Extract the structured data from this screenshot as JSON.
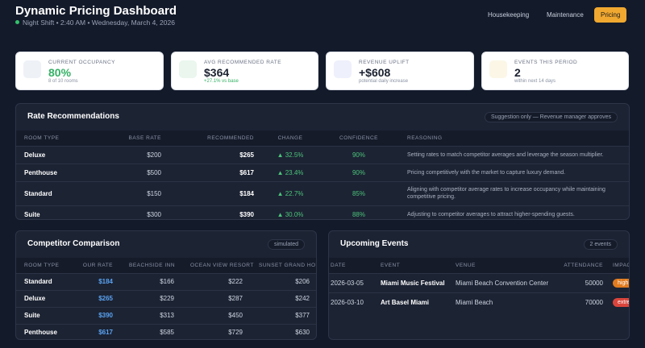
{
  "header": {
    "title": "Dynamic Pricing Dashboard",
    "subtitle": "Night Shift • 2:40 AM • Wednesday, March 4, 2026",
    "nav": [
      "Housekeeping",
      "Maintenance",
      "Pricing"
    ]
  },
  "kpis": [
    {
      "label": "CURRENT OCCUPANCY",
      "value": "80%",
      "sub": "8 of 10 rooms"
    },
    {
      "label": "AVG RECOMMENDED RATE",
      "value": "$364",
      "sub": "+27.1% vs base"
    },
    {
      "label": "REVENUE UPLIFT",
      "value": "+$608",
      "sub": "potential daily increase"
    },
    {
      "label": "EVENTS THIS PERIOD",
      "value": "2",
      "sub": "within next 14 days"
    }
  ],
  "rates": {
    "title": "Rate Recommendations",
    "badge": "Suggestion only — Revenue manager approves",
    "columns": [
      "ROOM TYPE",
      "BASE RATE",
      "RECOMMENDED",
      "CHANGE",
      "CONFIDENCE",
      "REASONING"
    ],
    "rows": [
      [
        "Deluxe",
        "$200",
        "$265",
        "▲ 32.5%",
        "90%",
        "Setting rates to match competitor averages and leverage the season multiplier."
      ],
      [
        "Penthouse",
        "$500",
        "$617",
        "▲ 23.4%",
        "90%",
        "Pricing competitively with the market to capture luxury demand."
      ],
      [
        "Standard",
        "$150",
        "$184",
        "▲ 22.7%",
        "85%",
        "Aligning with competitor average rates to increase occupancy while maintaining competitive pricing."
      ],
      [
        "Suite",
        "$300",
        "$390",
        "▲ 30.0%",
        "88%",
        "Adjusting to competitor averages to attract higher-spending guests."
      ]
    ]
  },
  "competitors": {
    "title": "Competitor Comparison",
    "badge": "simulated",
    "columns": [
      "ROOM TYPE",
      "OUR RATE",
      "BEACHSIDE INN",
      "OCEAN VIEW RESORT",
      "SUNSET GRAND HOTEL"
    ],
    "rows": [
      [
        "Standard",
        "$184",
        "$166",
        "$222",
        "$206"
      ],
      [
        "Deluxe",
        "$265",
        "$229",
        "$287",
        "$242"
      ],
      [
        "Suite",
        "$390",
        "$313",
        "$450",
        "$377"
      ],
      [
        "Penthouse",
        "$617",
        "$585",
        "$729",
        "$630"
      ]
    ]
  },
  "events": {
    "title": "Upcoming Events",
    "badge": "2 events",
    "columns": [
      "DATE",
      "EVENT",
      "VENUE",
      "ATTENDANCE",
      "IMPACT"
    ],
    "rows": [
      [
        "2026-03-05",
        "Miami Music Festival",
        "Miami Beach Convention Center",
        "50000",
        "high"
      ],
      [
        "2026-03-10",
        "Art Basel Miami",
        "Miami Beach",
        "70000",
        "extreme"
      ]
    ]
  }
}
